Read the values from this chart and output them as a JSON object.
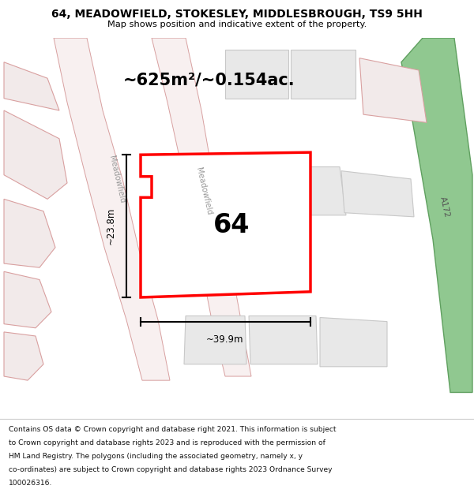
{
  "title_line1": "64, MEADOWFIELD, STOKESLEY, MIDDLESBROUGH, TS9 5HH",
  "title_line2": "Map shows position and indicative extent of the property.",
  "area_label": "~625m²/~0.154ac.",
  "property_number": "64",
  "width_label": "~39.9m",
  "height_label": "~23.8m",
  "footer_lines": [
    "Contains OS data © Crown copyright and database right 2021. This information is subject",
    "to Crown copyright and database rights 2023 and is reproduced with the permission of",
    "HM Land Registry. The polygons (including the associated geometry, namely x, y",
    "co-ordinates) are subject to Crown copyright and database rights 2023 Ordnance Survey",
    "100026316."
  ],
  "map_bg": "#f5f0eb",
  "highlight_color": "#ff0000",
  "title_bg": "#ffffff",
  "footer_bg": "#ffffff",
  "green_fill": "#90c890",
  "green_edge": "#60a060",
  "road_fill": "#f8f0f0",
  "road_edge": "#d8a0a0",
  "block_fill": "#e8e8e8",
  "block_edge": "#c8c8c8",
  "parcel_fill": "#f2eaea",
  "parcel_edge": "#d9a0a0",
  "property_fill": "#ffffff",
  "meadowfield_label": "Meadowfield",
  "a172_label": "A172"
}
